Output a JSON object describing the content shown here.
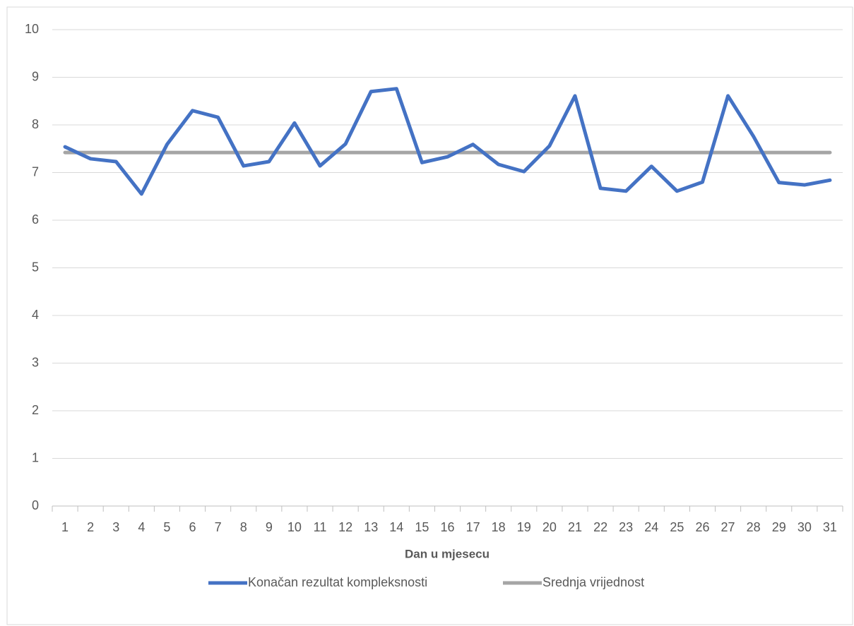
{
  "chart_data": {
    "type": "line",
    "x_label": "Dan u mjesecu",
    "categories": [
      "1",
      "2",
      "3",
      "4",
      "5",
      "6",
      "7",
      "8",
      "9",
      "10",
      "11",
      "12",
      "13",
      "14",
      "15",
      "16",
      "17",
      "18",
      "19",
      "20",
      "21",
      "22",
      "23",
      "24",
      "25",
      "26",
      "27",
      "28",
      "29",
      "30",
      "31"
    ],
    "series": [
      {
        "name": "Konačan rezultat kompleksnosti",
        "color": "#4472c4",
        "values": [
          7.54,
          7.29,
          7.23,
          6.55,
          7.59,
          8.3,
          8.16,
          7.14,
          7.23,
          8.04,
          7.14,
          7.6,
          8.7,
          8.76,
          7.21,
          7.33,
          7.59,
          7.17,
          7.02,
          7.56,
          8.61,
          6.67,
          6.61,
          7.13,
          6.61,
          6.8,
          8.61,
          7.76,
          6.79,
          6.74,
          6.84
        ]
      },
      {
        "name": "Srednja vrijednost",
        "color": "#a5a5a5",
        "values": [
          7.42,
          7.42,
          7.42,
          7.42,
          7.42,
          7.42,
          7.42,
          7.42,
          7.42,
          7.42,
          7.42,
          7.42,
          7.42,
          7.42,
          7.42,
          7.42,
          7.42,
          7.42,
          7.42,
          7.42,
          7.42,
          7.42,
          7.42,
          7.42,
          7.42,
          7.42,
          7.42,
          7.42,
          7.42,
          7.42,
          7.42
        ]
      }
    ],
    "ylim": [
      0,
      10
    ],
    "yticks": [
      0,
      1,
      2,
      3,
      4,
      5,
      6,
      7,
      8,
      9,
      10
    ],
    "grid": true,
    "legend": "bottom"
  }
}
